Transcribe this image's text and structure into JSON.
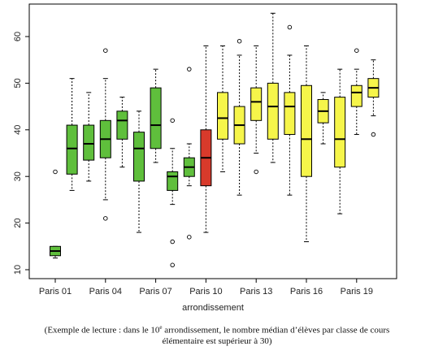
{
  "chart_data": {
    "type": "boxplot",
    "xlabel": "arrondissement",
    "ylabel": "",
    "ylim": [
      9,
      67
    ],
    "y_ticks": [
      10,
      20,
      30,
      40,
      50,
      60
    ],
    "x_tick_labels": [
      "Paris 01",
      "Paris 04",
      "Paris 07",
      "Paris 10",
      "Paris 13",
      "Paris 16",
      "Paris 19"
    ],
    "x_tick_positions": [
      1,
      4,
      7,
      10,
      13,
      16,
      19
    ],
    "grid": false,
    "colors": {
      "green": "#5fbf3c",
      "red": "#d83a2b",
      "yellow": "#f6f54a"
    },
    "boxes": [
      {
        "arr": 1,
        "color": "green",
        "min": 12.5,
        "q1": 13,
        "median": 14,
        "q3": 15,
        "max": 15,
        "outliers": [
          31
        ]
      },
      {
        "arr": 2,
        "color": "green",
        "min": 27,
        "q1": 30.5,
        "median": 36,
        "q3": 41,
        "max": 51,
        "outliers": []
      },
      {
        "arr": 3,
        "color": "green",
        "min": 29,
        "q1": 33.5,
        "median": 37,
        "q3": 41,
        "max": 48,
        "outliers": []
      },
      {
        "arr": 4,
        "color": "green",
        "min": 25,
        "q1": 34,
        "median": 38,
        "q3": 42,
        "max": 51,
        "outliers": [
          21,
          57
        ]
      },
      {
        "arr": 5,
        "color": "green",
        "min": 32,
        "q1": 38,
        "median": 42,
        "q3": 44,
        "max": 47,
        "outliers": []
      },
      {
        "arr": 6,
        "color": "green",
        "min": 18,
        "q1": 29,
        "median": 36,
        "q3": 39.5,
        "max": 44,
        "outliers": []
      },
      {
        "arr": 7,
        "color": "green",
        "min": 33,
        "q1": 36,
        "median": 41,
        "q3": 49,
        "max": 53,
        "outliers": []
      },
      {
        "arr": 8,
        "color": "green",
        "min": 24,
        "q1": 27,
        "median": 30,
        "q3": 31,
        "max": 36,
        "outliers": [
          16,
          11,
          42
        ]
      },
      {
        "arr": 9,
        "color": "green",
        "min": 28,
        "q1": 30,
        "median": 32,
        "q3": 34,
        "max": 37,
        "outliers": [
          17,
          53
        ]
      },
      {
        "arr": 10,
        "color": "red",
        "min": 18,
        "q1": 28,
        "median": 34,
        "q3": 40,
        "max": 58,
        "outliers": []
      },
      {
        "arr": 11,
        "color": "yellow",
        "min": 31,
        "q1": 38,
        "median": 42.5,
        "q3": 48,
        "max": 58,
        "outliers": []
      },
      {
        "arr": 12,
        "color": "yellow",
        "min": 26,
        "q1": 37,
        "median": 41,
        "q3": 45,
        "max": 56,
        "outliers": [
          59
        ]
      },
      {
        "arr": 13,
        "color": "yellow",
        "min": 35,
        "q1": 42,
        "median": 46,
        "q3": 49,
        "max": 58,
        "outliers": [
          31
        ]
      },
      {
        "arr": 14,
        "color": "yellow",
        "min": 33,
        "q1": 38,
        "median": 45,
        "q3": 50,
        "max": 65,
        "outliers": []
      },
      {
        "arr": 15,
        "color": "yellow",
        "min": 26,
        "q1": 39,
        "median": 45,
        "q3": 48,
        "max": 56,
        "outliers": [
          62
        ]
      },
      {
        "arr": 16,
        "color": "yellow",
        "min": 16,
        "q1": 30,
        "median": 38,
        "q3": 49.5,
        "max": 58,
        "outliers": []
      },
      {
        "arr": 17,
        "color": "yellow",
        "min": 37,
        "q1": 41.5,
        "median": 44,
        "q3": 46.5,
        "max": 48,
        "outliers": []
      },
      {
        "arr": 18,
        "color": "yellow",
        "min": 22,
        "q1": 32,
        "median": 38,
        "q3": 47,
        "max": 53,
        "outliers": []
      },
      {
        "arr": 19,
        "color": "yellow",
        "min": 39,
        "q1": 45,
        "median": 48,
        "q3": 49.5,
        "max": 53,
        "outliers": [
          57
        ]
      },
      {
        "arr": 20,
        "color": "yellow",
        "min": 43,
        "q1": 47,
        "median": 49,
        "q3": 51,
        "max": 55,
        "outliers": [
          39
        ]
      }
    ]
  },
  "caption": {
    "line1_before": "(Exemple de lecture : dans le 10",
    "line1_sup": "e",
    "line1_after": " arrondissement, le nombre médian d’élèves par classe de cours",
    "line2": "élémentaire est supérieur à 30)"
  }
}
